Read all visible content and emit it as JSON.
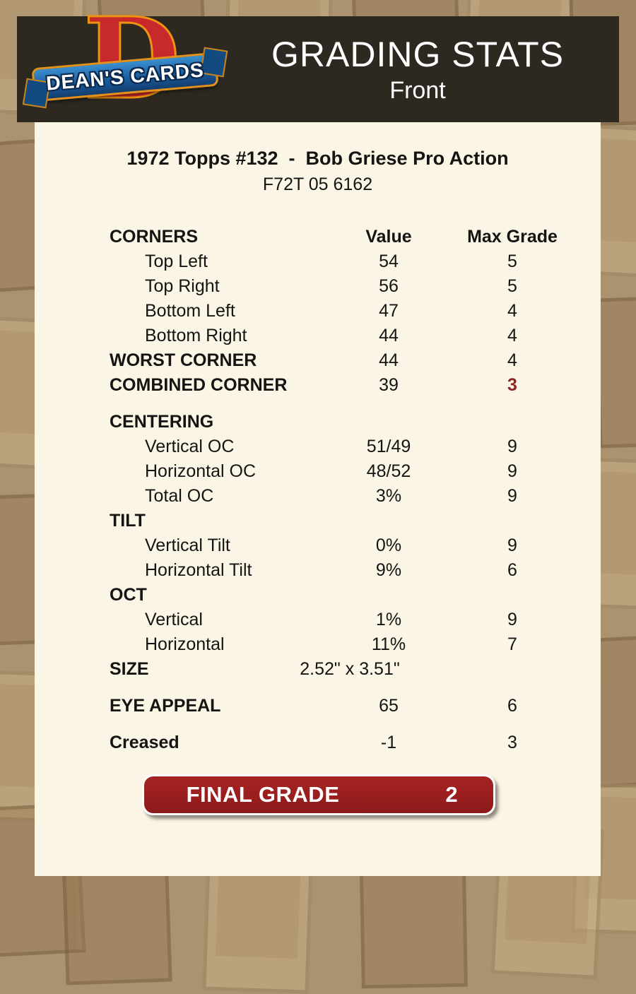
{
  "logo": {
    "letter": "D",
    "text": "DEAN'S CARDS"
  },
  "header": {
    "title": "GRADING STATS",
    "subtitle": "Front"
  },
  "card": {
    "title": "1972 Topps #132  -  Bob Griese Pro Action",
    "code": "F72T 05 6162"
  },
  "table": {
    "rows": [
      {
        "label": "CORNERS",
        "value": "Value",
        "max": "Max Grade",
        "bold": true,
        "header": true
      },
      {
        "label": "Top Left",
        "value": "54",
        "max": "5",
        "indent": true
      },
      {
        "label": "Top Right",
        "value": "56",
        "max": "5",
        "indent": true
      },
      {
        "label": "Bottom Left",
        "value": "47",
        "max": "4",
        "indent": true
      },
      {
        "label": "Bottom Right",
        "value": "44",
        "max": "4",
        "indent": true
      },
      {
        "label": "WORST CORNER",
        "value": "44",
        "max": "4",
        "bold": true
      },
      {
        "label": "COMBINED CORNER",
        "value": "39",
        "max": "3",
        "bold": true,
        "max_red": true
      },
      {
        "label": "CENTERING",
        "value": "",
        "max": "",
        "bold": true,
        "gap": true
      },
      {
        "label": "Vertical OC",
        "value": "51/49",
        "max": "9",
        "indent": true
      },
      {
        "label": "Horizontal OC",
        "value": "48/52",
        "max": "9",
        "indent": true
      },
      {
        "label": "Total OC",
        "value": "3%",
        "max": "9",
        "indent": true
      },
      {
        "label": "TILT",
        "value": "",
        "max": "",
        "bold": true
      },
      {
        "label": "Vertical Tilt",
        "value": "0%",
        "max": "9",
        "indent": true
      },
      {
        "label": "Horizontal Tilt",
        "value": "9%",
        "max": "6",
        "indent": true
      },
      {
        "label": "OCT",
        "value": "",
        "max": "",
        "bold": true
      },
      {
        "label": "Vertical",
        "value": "1%",
        "max": "9",
        "indent": true
      },
      {
        "label": "Horizontal",
        "value": "11%",
        "max": "7",
        "indent": true
      },
      {
        "label": "SIZE",
        "value": "2.52\" x 3.51\"",
        "max": "",
        "bold": true,
        "size_row": true
      },
      {
        "label": "EYE APPEAL",
        "value": "65",
        "max": "6",
        "bold": true,
        "gap": true
      },
      {
        "label": "Creased",
        "value": "-1",
        "max": "3",
        "bold": true,
        "gap": true
      }
    ]
  },
  "final": {
    "label": "FINAL GRADE",
    "value": "2"
  },
  "colors": {
    "page_background_tan": "#ac9370",
    "header_bar": "#2d2921",
    "panel_cream": "#fbf5e5",
    "button_red": "#9c1f1f",
    "alert_red": "#8e2323",
    "logo_red": "#c8292a",
    "logo_gold": "#ee9312",
    "ribbon_blue": "#1c5d9e",
    "text_black": "#151412"
  }
}
